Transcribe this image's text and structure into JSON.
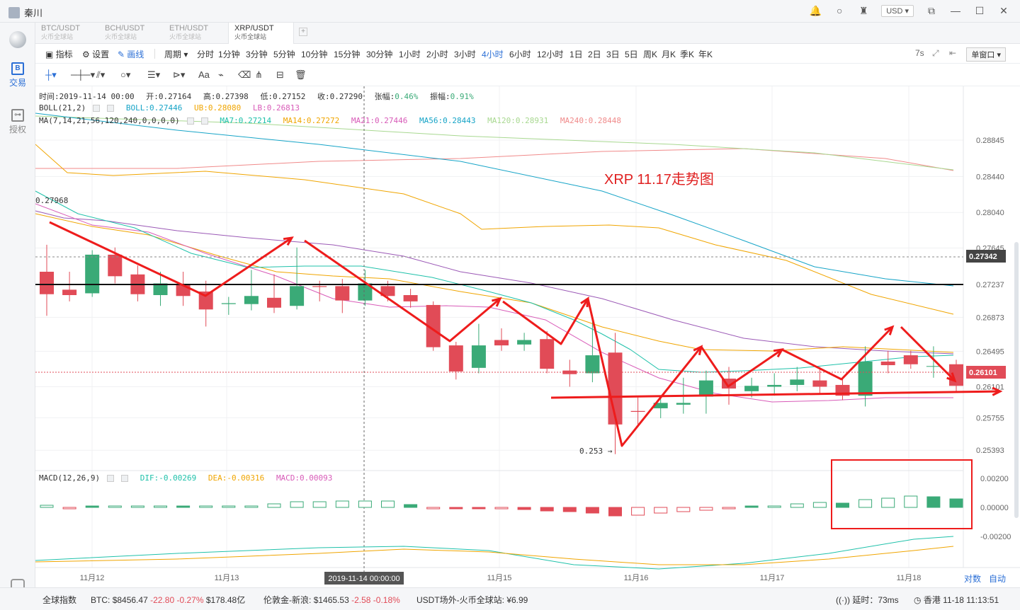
{
  "titlebar": {
    "user": "秦川",
    "currency": "USD ▾"
  },
  "sidebar": {
    "trade": "交易",
    "auth": "授权"
  },
  "tabs": [
    {
      "pair": "BTC/USDT",
      "exchange": "火币全球站"
    },
    {
      "pair": "BCH/USDT",
      "exchange": "火币全球站"
    },
    {
      "pair": "ETH/USDT",
      "exchange": "火币全球站"
    },
    {
      "pair": "XRP/USDT",
      "exchange": "火币全球站"
    }
  ],
  "toolbar": {
    "indicators": "指标",
    "settings": "设置",
    "draw": "画线",
    "period": "周期",
    "periods": [
      "分时",
      "1分钟",
      "3分钟",
      "5分钟",
      "10分钟",
      "15分钟",
      "30分钟",
      "1小时",
      "2小时",
      "3小时",
      "4小时",
      "6小时",
      "12小时",
      "1日",
      "2日",
      "3日",
      "5日",
      "周K",
      "月K",
      "季K",
      "年K"
    ],
    "active_period": "4小时",
    "refresh": "7s",
    "window": "单窗口 ▾"
  },
  "info": {
    "time": "时间:2019-11-14 00:00",
    "open": "开:0.27164",
    "high": "高:0.27398",
    "low": "低:0.27152",
    "close": "收:0.27290",
    "change": "0.46%",
    "change_label": "张幅:",
    "amp": "0.91%",
    "amp_label": "振幅:",
    "boll": "BOLL(21,2)",
    "boll_v": "BOLL:0.27446",
    "ub": "UB:0.28080",
    "lb": "LB:0.26813",
    "ma": "MA(7,14,21,56,120,240,0,0,0,0)",
    "ma7": "MA7:0.27214",
    "ma14": "MA14:0.27272",
    "ma21": "MA21:0.27446",
    "ma56": "MA56:0.28443",
    "ma120": "MA120:0.28931",
    "ma240": "MA240:0.28448",
    "macd": "MACD(12,26,9)",
    "dif": "DIF:-0.00269",
    "dea": "DEA:-0.00316",
    "macd_v": "MACD:0.00093"
  },
  "chart_data": {
    "type": "candlestick",
    "annotation_title": "XRP 11.17走势图",
    "y_ticks": [
      0.28845,
      0.2844,
      0.2804,
      0.27645,
      0.27237,
      0.26873,
      0.26495,
      0.26101,
      0.25755,
      0.25393
    ],
    "y_tick_labels": [
      "0.28845",
      "0.28440",
      "0.28040",
      "0.27645",
      "0.27237",
      "0.26873",
      "0.26495",
      "0.26101",
      "0.25755",
      "0.25393"
    ],
    "current_price": "0.27342",
    "last_price": "0.26101",
    "left_marker": "0.27968",
    "low_marker": "0.253",
    "x_labels": [
      "11月12",
      "11月13",
      "11月15",
      "11月16",
      "11月17",
      "11月18"
    ],
    "crosshair_label": "2019-11-14 00:00:00",
    "candles": [
      [
        0.2738,
        0.2713,
        0.2768,
        0.2689
      ],
      [
        0.2718,
        0.2712,
        0.2738,
        0.2705
      ],
      [
        0.2714,
        0.2757,
        0.2762,
        0.271
      ],
      [
        0.2757,
        0.2733,
        0.2765,
        0.2725
      ],
      [
        0.2735,
        0.2713,
        0.2745,
        0.2705
      ],
      [
        0.2712,
        0.2725,
        0.2738,
        0.27
      ],
      [
        0.2724,
        0.2711,
        0.2738,
        0.27
      ],
      [
        0.2716,
        0.2696,
        0.2728,
        0.2677
      ],
      [
        0.2702,
        0.2703,
        0.271,
        0.269
      ],
      [
        0.2702,
        0.2711,
        0.274,
        0.2695
      ],
      [
        0.2709,
        0.2698,
        0.2735,
        0.2692
      ],
      [
        0.27,
        0.2722,
        0.2765,
        0.2696
      ],
      [
        0.2722,
        0.2721,
        0.2728,
        0.2705
      ],
      [
        0.2722,
        0.2706,
        0.273,
        0.2692
      ],
      [
        0.2706,
        0.2725,
        0.274,
        0.27
      ],
      [
        0.2722,
        0.2711,
        0.2728,
        0.2705
      ],
      [
        0.2712,
        0.2705,
        0.2719,
        0.2698
      ],
      [
        0.2701,
        0.2654,
        0.2705,
        0.265
      ],
      [
        0.2656,
        0.2627,
        0.266,
        0.2618
      ],
      [
        0.2631,
        0.2656,
        0.268,
        0.2625
      ],
      [
        0.2662,
        0.2656,
        0.2675,
        0.265
      ],
      [
        0.2657,
        0.2662,
        0.267,
        0.265
      ],
      [
        0.2663,
        0.263,
        0.2672,
        0.2625
      ],
      [
        0.2628,
        0.2624,
        0.264,
        0.261
      ],
      [
        0.2625,
        0.2645,
        0.269,
        0.2615
      ],
      [
        0.2648,
        0.2568,
        0.267,
        0.2535
      ],
      [
        0.2583,
        0.2582,
        0.2598,
        0.2568
      ],
      [
        0.2586,
        0.2592,
        0.2598,
        0.2575
      ],
      [
        0.259,
        0.2592,
        0.262,
        0.258
      ],
      [
        0.2599,
        0.2617,
        0.2628,
        0.258
      ],
      [
        0.2619,
        0.2608,
        0.2632,
        0.259
      ],
      [
        0.2605,
        0.2611,
        0.262,
        0.2598
      ],
      [
        0.261,
        0.2612,
        0.2625,
        0.26
      ],
      [
        0.2612,
        0.2618,
        0.2632,
        0.2605
      ],
      [
        0.2617,
        0.261,
        0.2632,
        0.2602
      ],
      [
        0.2612,
        0.26,
        0.262,
        0.2595
      ],
      [
        0.26,
        0.2638,
        0.2655,
        0.2588
      ],
      [
        0.2638,
        0.2634,
        0.265,
        0.2625
      ],
      [
        0.2645,
        0.2635,
        0.265,
        0.263
      ],
      [
        0.2633,
        0.2633,
        0.2655,
        0.262
      ],
      [
        0.2635,
        0.2611,
        0.264,
        0.2605
      ]
    ],
    "macd_hist": [
      0.0003,
      -0.0002,
      0.0001,
      0.0001,
      0.0001,
      0.0002,
      0.0001,
      0.0001,
      0.0001,
      0.0002,
      0.0005,
      0.0008,
      0.0008,
      0.0009,
      0.0009,
      0.0009,
      0.0004,
      -0.0001,
      -0.0002,
      -0.0002,
      -0.0001,
      -0.0003,
      -0.0005,
      -0.0006,
      -0.0008,
      -0.0012,
      -0.0011,
      -0.0008,
      -0.0006,
      -0.0004,
      -0.0002,
      0.0001,
      0.0002,
      0.0005,
      0.0007,
      0.0006,
      0.0011,
      0.0013,
      0.0016,
      0.0015,
      0.0012
    ],
    "legend_ticks_macd": [
      "0.00200",
      "0.00000",
      "-0.00200"
    ]
  },
  "status": {
    "index": "全球指数",
    "btc_label": "BTC:",
    "btc_price": "$8456.47",
    "btc_change": "-22.80",
    "btc_pct": "-0.27%",
    "btc_vol": "$178.48亿",
    "gold_label": "伦敦金-新浪:",
    "gold_price": "$1465.53",
    "gold_change": "-2.58",
    "gold_pct": "-0.18%",
    "usdt": "USDT场外-火币全球站: ¥6.99",
    "latency": "延时：73ms",
    "clock": "香港 11-18 11:13:51"
  },
  "axis_right": {
    "pair_btn": "对数",
    "auto_btn": "自动"
  }
}
